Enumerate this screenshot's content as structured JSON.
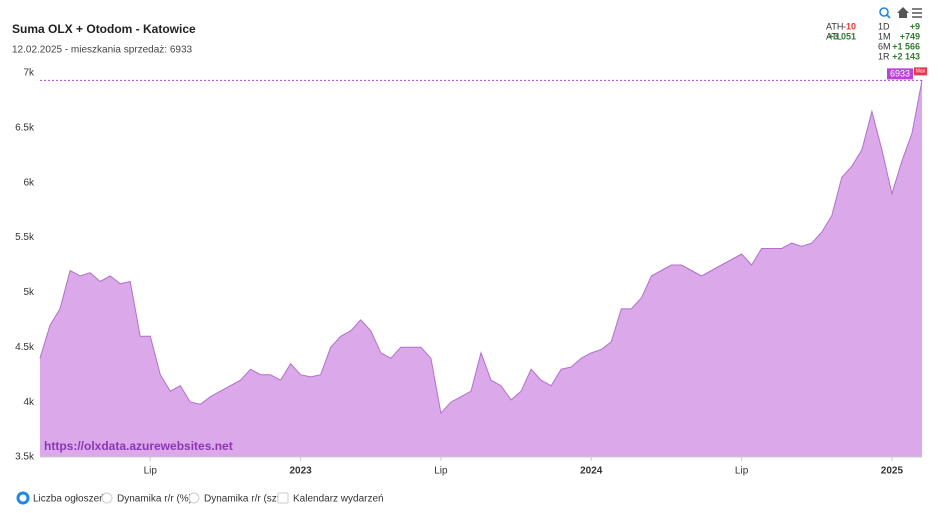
{
  "chart_data": {
    "type": "area",
    "title": "Suma OLX + Otodom - Katowice",
    "subtitle": "12.02.2025 - mieszkania sprzedaż: 6933",
    "watermark": "https://olxdata.azurewebsites.net",
    "max_flag": "Max",
    "color": "#dba9ea",
    "line_color": "#b36fcc",
    "categories": [
      null,
      null,
      null,
      null,
      null,
      null,
      null,
      null,
      null,
      null,
      null,
      "Lip",
      null,
      null,
      null,
      null,
      null,
      null,
      null,
      null,
      null,
      null,
      null,
      null,
      null,
      null,
      "2023",
      null,
      null,
      null,
      null,
      null,
      null,
      null,
      null,
      null,
      null,
      null,
      null,
      null,
      "Lip",
      null,
      null,
      null,
      null,
      null,
      null,
      null,
      null,
      null,
      null,
      null,
      null,
      null,
      null,
      "2024",
      null,
      null,
      null,
      null,
      null,
      null,
      null,
      null,
      null,
      null,
      null,
      null,
      null,
      null,
      "Lip",
      null,
      null,
      null,
      null,
      null,
      null,
      null,
      null,
      null,
      null,
      null,
      null,
      null,
      null,
      "2025",
      null,
      null,
      null
    ],
    "values": [
      4400,
      4700,
      4850,
      5200,
      5150,
      5180,
      5100,
      5150,
      5080,
      5100,
      4600,
      4600,
      4250,
      4100,
      4150,
      4000,
      3980,
      4050,
      4100,
      4150,
      4200,
      4300,
      4250,
      4250,
      4200,
      4350,
      4250,
      4230,
      4250,
      4500,
      4600,
      4650,
      4750,
      4650,
      4450,
      4400,
      4500,
      4500,
      4500,
      4400,
      3900,
      4000,
      4050,
      4100,
      4450,
      4200,
      4150,
      4020,
      4100,
      4300,
      4200,
      4150,
      4300,
      4320,
      4400,
      4450,
      4480,
      4550,
      4850,
      4850,
      4950,
      5150,
      5200,
      5250,
      5250,
      5200,
      5150,
      5200,
      5250,
      5300,
      5350,
      5250,
      5400,
      5400,
      5400,
      5450,
      5420,
      5450,
      5550,
      5700,
      6050,
      6150,
      6300,
      6650,
      6300,
      5900,
      6200,
      6450,
      6933
    ],
    "ylim": [
      3500,
      7000
    ],
    "yticks": [
      {
        "value": 3500,
        "label": "3.5k"
      },
      {
        "value": 4000,
        "label": "4k"
      },
      {
        "value": 4500,
        "label": "4.5k"
      },
      {
        "value": 5000,
        "label": "5k"
      },
      {
        "value": 5500,
        "label": "5.5k"
      },
      {
        "value": 6000,
        "label": "6k"
      },
      {
        "value": 6500,
        "label": "6.5k"
      },
      {
        "value": 7000,
        "label": "7k"
      }
    ],
    "grid": false,
    "stats": [
      {
        "label": "ATH",
        "value": "-10",
        "color": "#e53935"
      },
      {
        "label": "ATL",
        "value": "+3 051",
        "color": "#2e7d32"
      },
      {
        "label": "1D",
        "value": "+9",
        "color": "#2e7d32"
      },
      {
        "label": "1M",
        "value": "+749",
        "color": "#2e7d32"
      },
      {
        "label": "6M",
        "value": "+1 566",
        "color": "#2e7d32"
      },
      {
        "label": "1R",
        "value": "+2 143",
        "color": "#2e7d32"
      }
    ],
    "options": [
      "Liczba ogłoszeń",
      "Dynamika r/r (%)",
      "Dynamika r/r (szt)",
      "Kalendarz wydarzeń"
    ]
  }
}
